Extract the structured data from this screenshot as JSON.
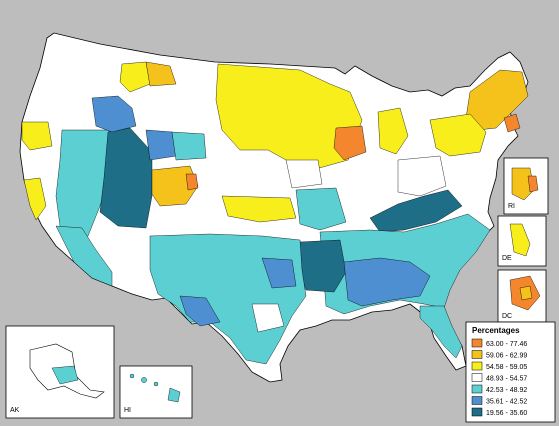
{
  "map": {
    "colors": {
      "background": "#bdbdbd",
      "border": "#000000",
      "bin1": "#f4872e",
      "bin2": "#f5c21b",
      "bin3": "#f8ee1c",
      "bin4": "#ffffff",
      "bin5": "#5ccfd3",
      "bin6": "#4d8fd1",
      "bin7": "#1d6e86"
    },
    "insets": {
      "ri": "RI",
      "de": "DE",
      "dc": "DC",
      "ak": "AK",
      "hi": "HI"
    },
    "legend": {
      "title": "Percentages",
      "items": [
        {
          "label": "63.00 - 77.46",
          "color": "#f4872e"
        },
        {
          "label": "59.06 - 62.99",
          "color": "#f5c21b"
        },
        {
          "label": "54.58 - 59.05",
          "color": "#f8ee1c"
        },
        {
          "label": "48.93 - 54.57",
          "color": "#ffffff"
        },
        {
          "label": "42.53 - 48.92",
          "color": "#5ccfd3"
        },
        {
          "label": "35.61 - 42.52",
          "color": "#4d8fd1"
        },
        {
          "label": "19.56 - 35.60",
          "color": "#1d6e86"
        }
      ]
    }
  }
}
